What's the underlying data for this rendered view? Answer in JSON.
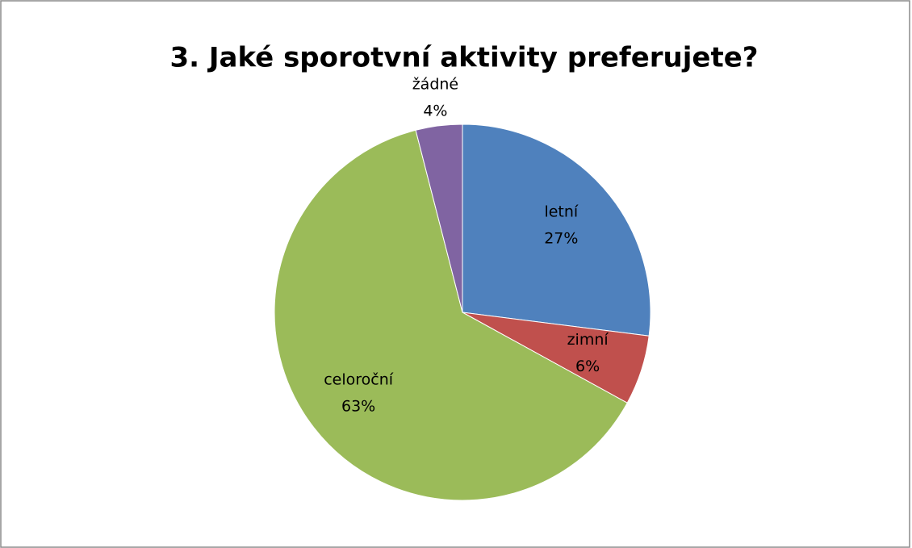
{
  "chart_data": {
    "type": "pie",
    "title": "3. Jaké sporotvní aktivity preferujete?",
    "categories": [
      "letní",
      "zimní",
      "celoroční",
      "žádné"
    ],
    "values": [
      27,
      6,
      63,
      4
    ],
    "value_labels": [
      "27%",
      "6%",
      "63%",
      "4%"
    ],
    "colors": [
      "#4f81bd",
      "#c0504d",
      "#9bbb59",
      "#8064a2"
    ]
  }
}
